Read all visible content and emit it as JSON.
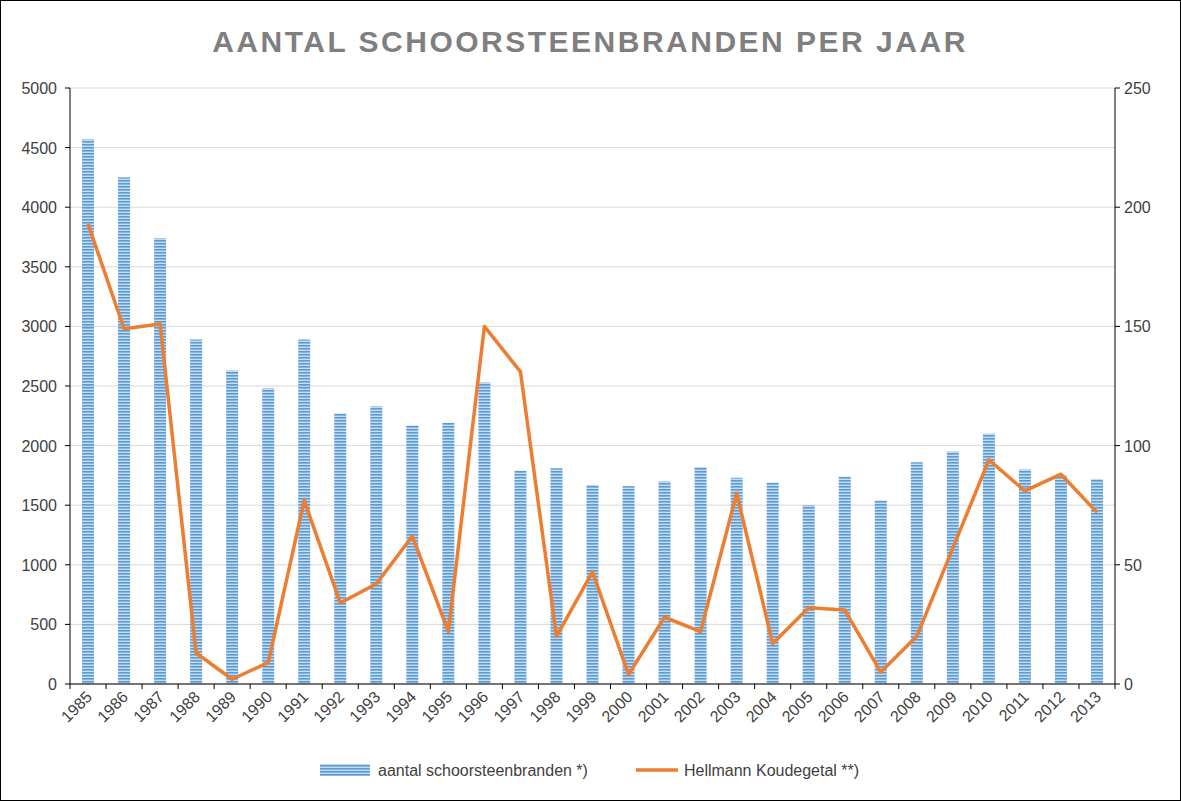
{
  "chart_data": {
    "type": "bar",
    "title": "AANTAL SCHOORSTEENBRANDEN PER JAAR",
    "categories": [
      "1985",
      "1986",
      "1987",
      "1988",
      "1989",
      "1990",
      "1991",
      "1992",
      "1993",
      "1994",
      "1995",
      "1996",
      "1997",
      "1998",
      "1999",
      "2000",
      "2001",
      "2002",
      "2003",
      "2004",
      "2005",
      "2006",
      "2007",
      "2008",
      "2009",
      "2010",
      "2011",
      "2012",
      "2013"
    ],
    "series": [
      {
        "name": "aantal schoorsteenbranden *)",
        "color": "#5b9bd5",
        "type": "bar",
        "values": [
          4570,
          4250,
          3740,
          2890,
          2630,
          2480,
          2890,
          2270,
          2330,
          2170,
          2190,
          2530,
          1790,
          1810,
          1670,
          1660,
          1700,
          1820,
          1730,
          1690,
          1500,
          1740,
          1540,
          1860,
          1950,
          2100,
          1800,
          1750,
          1720
        ]
      },
      {
        "name": "Hellmann Koudegetal **)",
        "color": "#ed7d31",
        "type": "line",
        "axis": "y2",
        "values": [
          193,
          149,
          151,
          13,
          2,
          9,
          77,
          34,
          42,
          62,
          22,
          150,
          131,
          20,
          47,
          4,
          28,
          22,
          80,
          17,
          32,
          31,
          5,
          20,
          57,
          94,
          81,
          88,
          72
        ]
      }
    ],
    "ylim": [
      0,
      5000
    ],
    "yticks": [
      0,
      500,
      1000,
      1500,
      2000,
      2500,
      3000,
      3500,
      4000,
      4500,
      5000
    ],
    "y2lim": [
      0,
      250
    ],
    "y2ticks": [
      0,
      50,
      100,
      150,
      200,
      250
    ],
    "grid": true,
    "legend": "bottom"
  }
}
